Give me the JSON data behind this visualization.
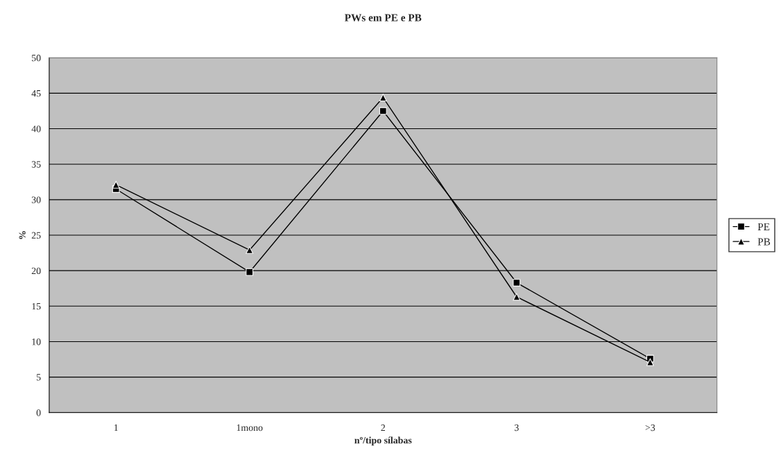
{
  "chart_data": {
    "type": "line",
    "title": "PWs em PE e PB",
    "xlabel": "nº/tipo sílabas",
    "ylabel": "%",
    "categories": [
      "1",
      "1mono",
      "2",
      "3",
      ">3"
    ],
    "series": [
      {
        "name": "PE",
        "color": "#000000",
        "marker": "square",
        "values": [
          31.5,
          19.8,
          42.5,
          18.3,
          7.6
        ]
      },
      {
        "name": "PB",
        "color": "#000000",
        "marker": "triangle",
        "values": [
          32.1,
          22.9,
          44.4,
          16.3,
          7.1
        ]
      }
    ],
    "ylim": [
      0,
      50
    ],
    "yticks": [
      0,
      5,
      10,
      15,
      20,
      25,
      30,
      35,
      40,
      45,
      50
    ],
    "grid": "y",
    "legend": "right"
  }
}
